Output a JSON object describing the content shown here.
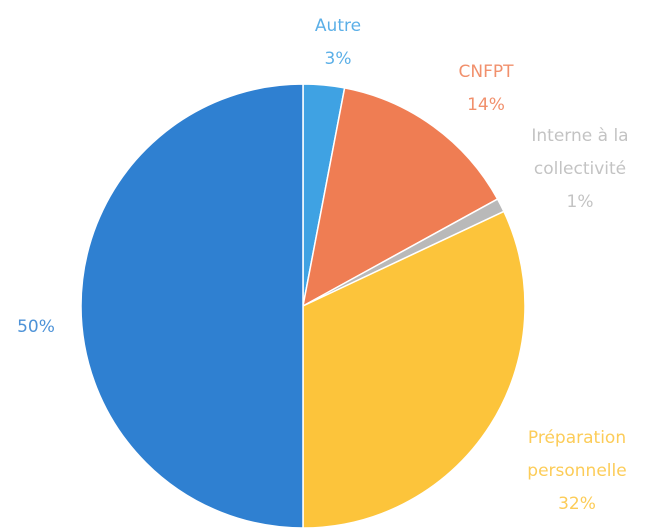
{
  "chart_data": {
    "type": "pie",
    "categories": [
      "Autre",
      "CNFPT",
      "Interne à la collectivité",
      "Préparation personnelle",
      null
    ],
    "values": [
      3,
      14,
      1,
      32,
      50
    ],
    "value_labels": [
      "3%",
      "14%",
      "1%",
      "32%",
      "50%"
    ],
    "colors": [
      "#3fa2e3",
      "#ef7d53",
      "#b9b9b9",
      "#fcc43b",
      "#2f80d1"
    ]
  }
}
